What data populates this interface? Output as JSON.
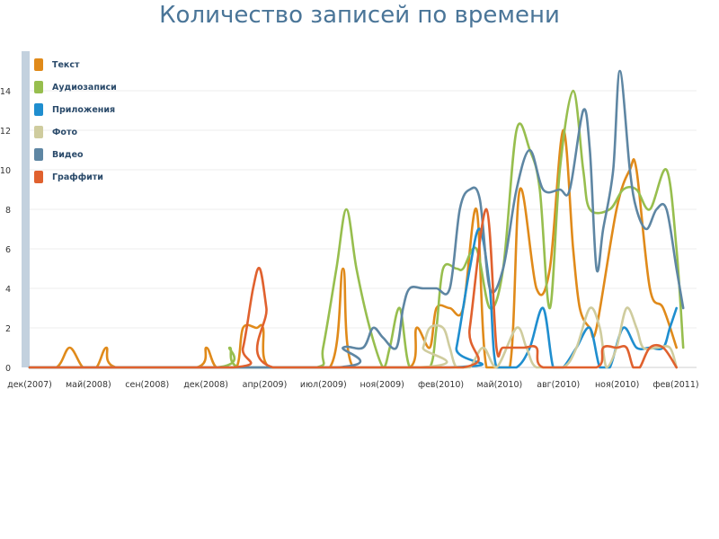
{
  "chart_data": {
    "type": "line",
    "title": "Количество записей по времени",
    "xlabel": "",
    "ylabel": "",
    "ylim": [
      0,
      16
    ],
    "y_ticks": [
      0,
      2,
      4,
      6,
      8,
      10,
      12,
      14
    ],
    "x_tick_labels": [
      "дек(2007)",
      "май(2008)",
      "сен(2008)",
      "дек(2008)",
      "апр(2009)",
      "июл(2009)",
      "ноя(2009)",
      "фев(2010)",
      "май(2010)",
      "авг(2010)",
      "ноя(2010)",
      "фев(2011)"
    ],
    "x_range": [
      0,
      100
    ],
    "grid": "horizontal",
    "legend_position": "top-left",
    "series": [
      {
        "name": "Текст",
        "color": "#e08a1a",
        "points": [
          [
            0,
            0
          ],
          [
            4,
            0
          ],
          [
            6,
            1
          ],
          [
            8,
            0
          ],
          [
            10,
            0
          ],
          [
            11.5,
            1
          ],
          [
            13,
            0
          ],
          [
            25,
            0
          ],
          [
            26.5,
            1
          ],
          [
            28,
            0
          ],
          [
            31,
            0
          ],
          [
            32,
            2
          ],
          [
            34,
            2
          ],
          [
            35,
            2
          ],
          [
            36,
            0
          ],
          [
            45,
            0
          ],
          [
            47,
            5
          ],
          [
            48.5,
            0
          ],
          [
            57,
            0
          ],
          [
            58,
            2
          ],
          [
            60,
            1
          ],
          [
            61,
            3
          ],
          [
            63,
            3
          ],
          [
            65,
            3
          ],
          [
            67,
            8
          ],
          [
            68.5,
            0
          ],
          [
            72,
            0
          ],
          [
            73.5,
            9
          ],
          [
            76,
            4
          ],
          [
            78,
            5
          ],
          [
            80,
            12
          ],
          [
            81.5,
            6
          ],
          [
            82.5,
            3
          ],
          [
            84,
            2
          ],
          [
            85,
            2
          ],
          [
            88,
            8
          ],
          [
            90,
            10
          ],
          [
            91,
            10
          ],
          [
            93,
            4
          ],
          [
            95,
            3
          ],
          [
            97,
            1
          ]
        ]
      },
      {
        "name": "Аудиозаписи",
        "color": "#97be4e",
        "points": [
          [
            0,
            0
          ],
          [
            28,
            0
          ],
          [
            30,
            1
          ],
          [
            31.5,
            0
          ],
          [
            43,
            0
          ],
          [
            44,
            1
          ],
          [
            46,
            5
          ],
          [
            47.5,
            8
          ],
          [
            49,
            5
          ],
          [
            51,
            2
          ],
          [
            53,
            0
          ],
          [
            54,
            1
          ],
          [
            55.5,
            3
          ],
          [
            57,
            0
          ],
          [
            60,
            0
          ],
          [
            61,
            2
          ],
          [
            62,
            5
          ],
          [
            64,
            5
          ],
          [
            65,
            5
          ],
          [
            67,
            6
          ],
          [
            69,
            3
          ],
          [
            71,
            5
          ],
          [
            73,
            12
          ],
          [
            75,
            11
          ],
          [
            76.5,
            9
          ],
          [
            78,
            3
          ],
          [
            79.5,
            10
          ],
          [
            81.5,
            14
          ],
          [
            83,
            10
          ],
          [
            84,
            8
          ],
          [
            87,
            8
          ],
          [
            89,
            9
          ],
          [
            91,
            9
          ],
          [
            93,
            8
          ],
          [
            95.5,
            10
          ],
          [
            97,
            6
          ],
          [
            98,
            1
          ]
        ]
      },
      {
        "name": "Приложения",
        "color": "#1f8ecf",
        "points": [
          [
            0,
            0
          ],
          [
            63,
            0
          ],
          [
            64,
            1
          ],
          [
            66,
            5
          ],
          [
            67.5,
            7
          ],
          [
            69,
            4
          ],
          [
            70,
            0
          ],
          [
            73,
            0
          ],
          [
            75,
            1
          ],
          [
            77,
            3
          ],
          [
            78.5,
            0
          ],
          [
            80,
            0
          ],
          [
            82,
            1
          ],
          [
            84,
            2
          ],
          [
            85.5,
            0
          ],
          [
            87,
            0
          ],
          [
            89,
            2
          ],
          [
            91,
            1
          ],
          [
            93,
            1
          ],
          [
            95,
            1
          ],
          [
            96,
            2
          ],
          [
            97,
            3
          ]
        ]
      },
      {
        "name": "Фото",
        "color": "#cfcc9e",
        "points": [
          [
            0,
            0
          ],
          [
            58,
            0
          ],
          [
            59,
            1
          ],
          [
            60,
            2
          ],
          [
            62,
            2
          ],
          [
            63,
            1
          ],
          [
            64,
            0
          ],
          [
            66,
            0
          ],
          [
            68,
            1
          ],
          [
            70,
            0
          ],
          [
            73,
            2
          ],
          [
            74.5,
            1
          ],
          [
            76,
            0
          ],
          [
            80,
            0
          ],
          [
            82,
            1
          ],
          [
            84,
            3
          ],
          [
            85.5,
            2
          ],
          [
            86.5,
            0
          ],
          [
            88,
            1
          ],
          [
            89.5,
            3
          ],
          [
            91,
            2
          ],
          [
            92,
            1
          ],
          [
            94,
            1
          ],
          [
            96,
            1
          ],
          [
            97,
            0
          ]
        ]
      },
      {
        "name": "Видео",
        "color": "#5e86a3",
        "points": [
          [
            0,
            0
          ],
          [
            46,
            0
          ],
          [
            47,
            1
          ],
          [
            50,
            1
          ],
          [
            51.5,
            2
          ],
          [
            53,
            1.5
          ],
          [
            55,
            1
          ],
          [
            56,
            3
          ],
          [
            57,
            4
          ],
          [
            59,
            4
          ],
          [
            61,
            4
          ],
          [
            63,
            4
          ],
          [
            64.5,
            8
          ],
          [
            66,
            9
          ],
          [
            67.5,
            8.5
          ],
          [
            69,
            4
          ],
          [
            71,
            5
          ],
          [
            73,
            9
          ],
          [
            75,
            11
          ],
          [
            77,
            9
          ],
          [
            79.5,
            9
          ],
          [
            81,
            9
          ],
          [
            83,
            13
          ],
          [
            84,
            11
          ],
          [
            85,
            5
          ],
          [
            86,
            7
          ],
          [
            87.5,
            10
          ],
          [
            88.5,
            15
          ],
          [
            90,
            10
          ],
          [
            91,
            8
          ],
          [
            92.5,
            7
          ],
          [
            94,
            8
          ],
          [
            95.5,
            8
          ],
          [
            97,
            5
          ],
          [
            98,
            3
          ]
        ]
      },
      {
        "name": "Граффити",
        "color": "#e0612e",
        "points": [
          [
            0,
            0
          ],
          [
            30.5,
            0
          ],
          [
            32,
            1
          ],
          [
            33.5,
            4
          ],
          [
            34.5,
            5
          ],
          [
            35.5,
            3
          ],
          [
            36.5,
            0
          ],
          [
            65,
            0
          ],
          [
            66,
            2
          ],
          [
            68.5,
            8
          ],
          [
            70,
            1
          ],
          [
            71,
            1
          ],
          [
            74,
            1
          ],
          [
            76,
            1
          ],
          [
            77,
            0
          ],
          [
            85,
            0
          ],
          [
            86,
            1
          ],
          [
            88,
            1
          ],
          [
            89.5,
            1
          ],
          [
            90.5,
            0
          ],
          [
            91.5,
            0
          ],
          [
            93,
            1
          ],
          [
            95,
            1
          ],
          [
            97,
            0
          ]
        ]
      }
    ]
  }
}
